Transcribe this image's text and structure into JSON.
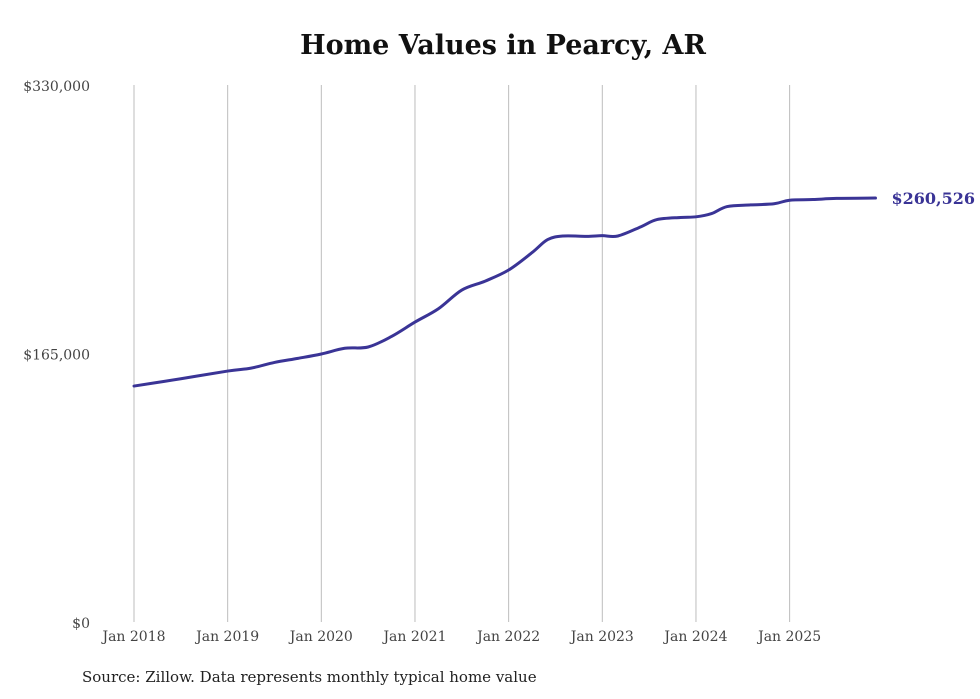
{
  "chart_data": {
    "type": "line",
    "title": "Home Values in Pearcy, AR",
    "xlabel": "",
    "ylabel": "",
    "ylim": [
      0,
      330000
    ],
    "y_ticks": [
      0,
      165000,
      330000
    ],
    "y_tick_labels": [
      "$0",
      "$165,000",
      "$330,000"
    ],
    "x_tick_labels": [
      "Jan 2018",
      "Jan 2019",
      "Jan 2020",
      "Jan 2021",
      "Jan 2022",
      "Jan 2023",
      "Jan 2024",
      "Jan 2025"
    ],
    "x_unit": "months since Jan 2018",
    "xlim": [
      0,
      95
    ],
    "grid": "vertical at each January",
    "series": [
      {
        "name": "Typical home value",
        "color": "#3a3496",
        "points": [
          [
            0,
            145000
          ],
          [
            6,
            149500
          ],
          [
            12,
            154200
          ],
          [
            15,
            156000
          ],
          [
            18,
            159500
          ],
          [
            21,
            162000
          ],
          [
            24,
            164700
          ],
          [
            27,
            168200
          ],
          [
            30,
            169000
          ],
          [
            33,
            175500
          ],
          [
            36,
            184300
          ],
          [
            39,
            192500
          ],
          [
            42,
            204000
          ],
          [
            45,
            209500
          ],
          [
            48,
            216300
          ],
          [
            51,
            227000
          ],
          [
            53,
            235000
          ],
          [
            55,
            237200
          ],
          [
            58,
            237000
          ],
          [
            60,
            237400
          ],
          [
            62,
            237200
          ],
          [
            65,
            243000
          ],
          [
            67,
            247300
          ],
          [
            70,
            248600
          ],
          [
            72,
            249000
          ],
          [
            74,
            251000
          ],
          [
            76,
            255300
          ],
          [
            79,
            256300
          ],
          [
            82,
            257000
          ],
          [
            84,
            259200
          ],
          [
            87,
            259600
          ],
          [
            90,
            260300
          ],
          [
            95,
            260526
          ]
        ]
      }
    ],
    "end_label": "$260,526"
  },
  "source": "Source: Zillow. Data represents monthly typical home value"
}
